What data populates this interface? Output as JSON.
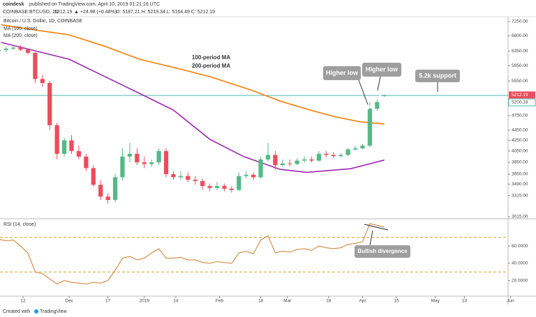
{
  "header": {
    "brand": "coindesk",
    "published": "published on TradingView.com, April 10, 2019 01:21:16 UTC",
    "symbol": "COINBASE:BTCUSD, 1D",
    "quote": "5212.19",
    "change": "▲ +24.98 (+0.48%)",
    "ohlc": "O: 5187.21 H: 5219.34 L: 5164.49 C: 5212.19"
  },
  "footer": {
    "text": "Created with",
    "brand": "TradingView"
  },
  "chart_data": [
    {
      "type": "candlestick",
      "title": "Bitcoin / U.S. Dollar, 1D, COINBASE",
      "log_scale": true,
      "up_color": "#53b987",
      "down_color": "#eb4d5c",
      "xlim": [
        1.5,
        211
      ],
      "ylim": [
        2996,
        7410
      ],
      "yticks": [
        {
          "value": 7250,
          "label": "7250.00"
        },
        {
          "value": 6800,
          "label": "6800.00"
        },
        {
          "value": 6350,
          "label": "6350.00"
        },
        {
          "value": 5950,
          "label": "5950.00"
        },
        {
          "value": 5550,
          "label": "5550.00"
        },
        {
          "value": 4750,
          "label": "4750.00"
        },
        {
          "value": 4450,
          "label": "4450.00"
        },
        {
          "value": 4250,
          "label": "4250.00"
        },
        {
          "value": 4050,
          "label": "4050.00"
        },
        {
          "value": 3850,
          "label": "3850.00"
        },
        {
          "value": 3650,
          "label": "3650.00"
        },
        {
          "value": 3490,
          "label": "3490.00"
        },
        {
          "value": 3315,
          "label": "3315.00"
        },
        {
          "value": 3015,
          "label": "3015.00"
        }
      ],
      "last_price": 5212.19,
      "support": 5200.18,
      "x": [
        1,
        4,
        7,
        10,
        13,
        16,
        19,
        22,
        25,
        28,
        31,
        34,
        37,
        40,
        43,
        46,
        49,
        52,
        55,
        58,
        61,
        64,
        67,
        70,
        73,
        76,
        79,
        82,
        85,
        88,
        91,
        94,
        97,
        100,
        103,
        106,
        109,
        112,
        115,
        118,
        121,
        124,
        127,
        130,
        133,
        136,
        139,
        142,
        145,
        148,
        151,
        154,
        157,
        160
      ],
      "open": [
        6350,
        6380,
        6420,
        6450,
        6390,
        6300,
        5600,
        5500,
        4550,
        4000,
        4250,
        4050,
        3950,
        3750,
        3480,
        3300,
        3250,
        3600,
        3950,
        4000,
        3850,
        3820,
        3850,
        4050,
        3650,
        3600,
        3620,
        3560,
        3540,
        3460,
        3430,
        3460,
        3420,
        3400,
        3620,
        3640,
        3600,
        3900,
        3980,
        3800,
        3830,
        3820,
        3880,
        3900,
        3880,
        4000,
        3980,
        3960,
        3980,
        4080,
        4100,
        4150,
        4900,
        5187.21
      ],
      "high": [
        6450,
        6480,
        6500,
        6520,
        6420,
        6320,
        5700,
        5550,
        4600,
        4300,
        4350,
        4150,
        4000,
        3800,
        3550,
        3350,
        3650,
        4100,
        4200,
        4100,
        3950,
        3900,
        4100,
        4100,
        3700,
        3700,
        3680,
        3620,
        3580,
        3500,
        3520,
        3500,
        3460,
        3680,
        3700,
        3680,
        3950,
        4200,
        4050,
        3900,
        3900,
        3920,
        3950,
        3950,
        4050,
        4050,
        4030,
        4010,
        4110,
        4150,
        4180,
        5050,
        5150,
        5219.34
      ],
      "low": [
        6300,
        6330,
        6380,
        6350,
        6250,
        5500,
        5400,
        4450,
        3900,
        3950,
        4000,
        3900,
        3700,
        3450,
        3250,
        3200,
        3220,
        3550,
        3850,
        3800,
        3750,
        3770,
        3800,
        3600,
        3560,
        3560,
        3520,
        3480,
        3400,
        3380,
        3400,
        3380,
        3360,
        3380,
        3580,
        3560,
        3580,
        3860,
        3720,
        3770,
        3780,
        3800,
        3840,
        3850,
        3860,
        3940,
        3920,
        3930,
        3960,
        4060,
        4080,
        4120,
        4850,
        5164.49
      ],
      "close": [
        6380,
        6420,
        6450,
        6390,
        6300,
        5600,
        5500,
        4550,
        4000,
        4250,
        4050,
        3950,
        3750,
        3480,
        3300,
        3250,
        3600,
        3950,
        4000,
        3850,
        3820,
        3850,
        4050,
        3650,
        3600,
        3620,
        3560,
        3540,
        3460,
        3430,
        3460,
        3420,
        3400,
        3620,
        3640,
        3600,
        3900,
        3980,
        3800,
        3830,
        3820,
        3880,
        3900,
        3880,
        4000,
        3980,
        3960,
        3980,
        4080,
        4100,
        4150,
        4900,
        5050,
        5212.19
      ],
      "series": [
        {
          "name": "MA (100, close)",
          "color": "#9c27b0",
          "x": [
            2,
            30,
            59,
            73,
            88,
            102,
            117,
            128,
            146,
            160
          ],
          "values": [
            6600,
            6120,
            5250,
            4870,
            4270,
            3950,
            3730,
            3680,
            3740,
            3890
          ]
        },
        {
          "name": "MA (200, close)",
          "color": "#f57c00",
          "x": [
            2,
            10,
            30,
            45,
            59,
            75,
            88,
            105,
            117,
            130,
            140,
            150,
            160
          ],
          "values": [
            7150,
            7050,
            6830,
            6480,
            6120,
            5870,
            5660,
            5330,
            5070,
            4860,
            4720,
            4620,
            4575
          ]
        }
      ],
      "annotations": [
        "100-period MA",
        "200-period MA",
        "Higher low",
        "Higher low",
        "5.2k support"
      ]
    },
    {
      "type": "line",
      "title": "RSI (14, close)",
      "color": "#d17a2a",
      "band_color": "#c9a227",
      "xlim": [
        1.5,
        211
      ],
      "ylim": [
        2,
        90
      ],
      "yticks": [
        {
          "value": 60,
          "label": "60.0000"
        },
        {
          "value": 40,
          "label": "40.0000"
        },
        {
          "value": 20,
          "label": "20.0000"
        }
      ],
      "bands": [
        70,
        30
      ],
      "xticks": [
        {
          "value": 11,
          "label": "12"
        },
        {
          "value": 30,
          "label": "Dec"
        },
        {
          "value": 46,
          "label": "17"
        },
        {
          "value": 61,
          "label": "2019"
        },
        {
          "value": 74,
          "label": "14"
        },
        {
          "value": 92,
          "label": "Feb"
        },
        {
          "value": 109,
          "label": "18"
        },
        {
          "value": 120,
          "label": "Mar"
        },
        {
          "value": 137,
          "label": "18"
        },
        {
          "value": 151,
          "label": "Apr"
        },
        {
          "value": 165,
          "label": "15"
        },
        {
          "value": 181,
          "label": "May"
        },
        {
          "value": 193,
          "label": "13"
        },
        {
          "value": 212,
          "label": "Jun"
        }
      ],
      "x": [
        1,
        4,
        7,
        10,
        13,
        16,
        19,
        22,
        25,
        28,
        31,
        34,
        37,
        40,
        43,
        46,
        49,
        52,
        55,
        58,
        61,
        64,
        67,
        70,
        73,
        76,
        79,
        82,
        85,
        88,
        91,
        94,
        97,
        100,
        103,
        106,
        109,
        112,
        115,
        118,
        121,
        124,
        127,
        130,
        133,
        136,
        139,
        142,
        145,
        148,
        151,
        154,
        157,
        160
      ],
      "values": [
        68,
        66,
        67,
        60,
        52,
        30,
        28,
        22,
        16,
        20,
        18,
        17,
        16,
        18,
        17,
        20,
        32,
        46,
        48,
        44,
        46,
        52,
        57,
        46,
        46,
        47,
        44,
        44,
        41,
        40,
        42,
        41,
        40,
        52,
        54,
        51,
        67,
        72,
        52,
        54,
        53,
        56,
        57,
        55,
        60,
        58,
        57,
        58,
        62,
        63,
        65,
        86,
        84,
        82
      ],
      "annotations": [
        "Bullish divergence"
      ]
    }
  ]
}
